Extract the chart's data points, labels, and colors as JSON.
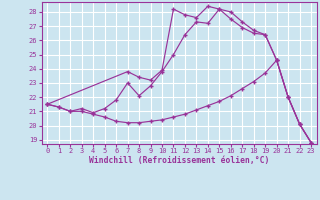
{
  "xlabel": "Windchill (Refroidissement éolien,°C)",
  "background_color": "#cce5f0",
  "grid_color": "#ffffff",
  "line_color": "#993399",
  "xlim": [
    -0.5,
    23.5
  ],
  "ylim": [
    18.7,
    28.7
  ],
  "yticks": [
    19,
    20,
    21,
    22,
    23,
    24,
    25,
    26,
    27,
    28
  ],
  "xticks": [
    0,
    1,
    2,
    3,
    4,
    5,
    6,
    7,
    8,
    9,
    10,
    11,
    12,
    13,
    14,
    15,
    16,
    17,
    18,
    19,
    20,
    21,
    22,
    23
  ],
  "line1_x": [
    0,
    1,
    2,
    3,
    4,
    5,
    6,
    7,
    8,
    9,
    10,
    11,
    12,
    13,
    14,
    15,
    16,
    17,
    18,
    19,
    20,
    21,
    22,
    23
  ],
  "line1_y": [
    21.5,
    21.3,
    21.0,
    21.0,
    20.8,
    20.6,
    20.3,
    20.2,
    20.2,
    20.3,
    20.4,
    20.6,
    20.8,
    21.1,
    21.4,
    21.7,
    22.1,
    22.6,
    23.1,
    23.7,
    24.6,
    22.0,
    20.1,
    18.8
  ],
  "line2_x": [
    0,
    1,
    2,
    3,
    4,
    5,
    6,
    7,
    8,
    9,
    10,
    11,
    12,
    13,
    14,
    15,
    16,
    17,
    18,
    19,
    20,
    21,
    22,
    23
  ],
  "line2_y": [
    21.5,
    21.3,
    21.0,
    21.2,
    20.9,
    21.2,
    21.8,
    23.0,
    22.1,
    22.8,
    23.8,
    25.0,
    26.4,
    27.3,
    27.2,
    28.2,
    28.0,
    27.3,
    26.7,
    26.4,
    24.6,
    22.0,
    20.1,
    18.8
  ],
  "line3_x": [
    0,
    7,
    8,
    9,
    10,
    11,
    12,
    13,
    14,
    15,
    16,
    17,
    18,
    19,
    20,
    21,
    22,
    23
  ],
  "line3_y": [
    21.5,
    23.8,
    23.4,
    23.2,
    23.9,
    28.2,
    27.8,
    27.6,
    28.4,
    28.2,
    27.5,
    26.9,
    26.5,
    26.4,
    24.6,
    22.0,
    20.1,
    18.8
  ]
}
